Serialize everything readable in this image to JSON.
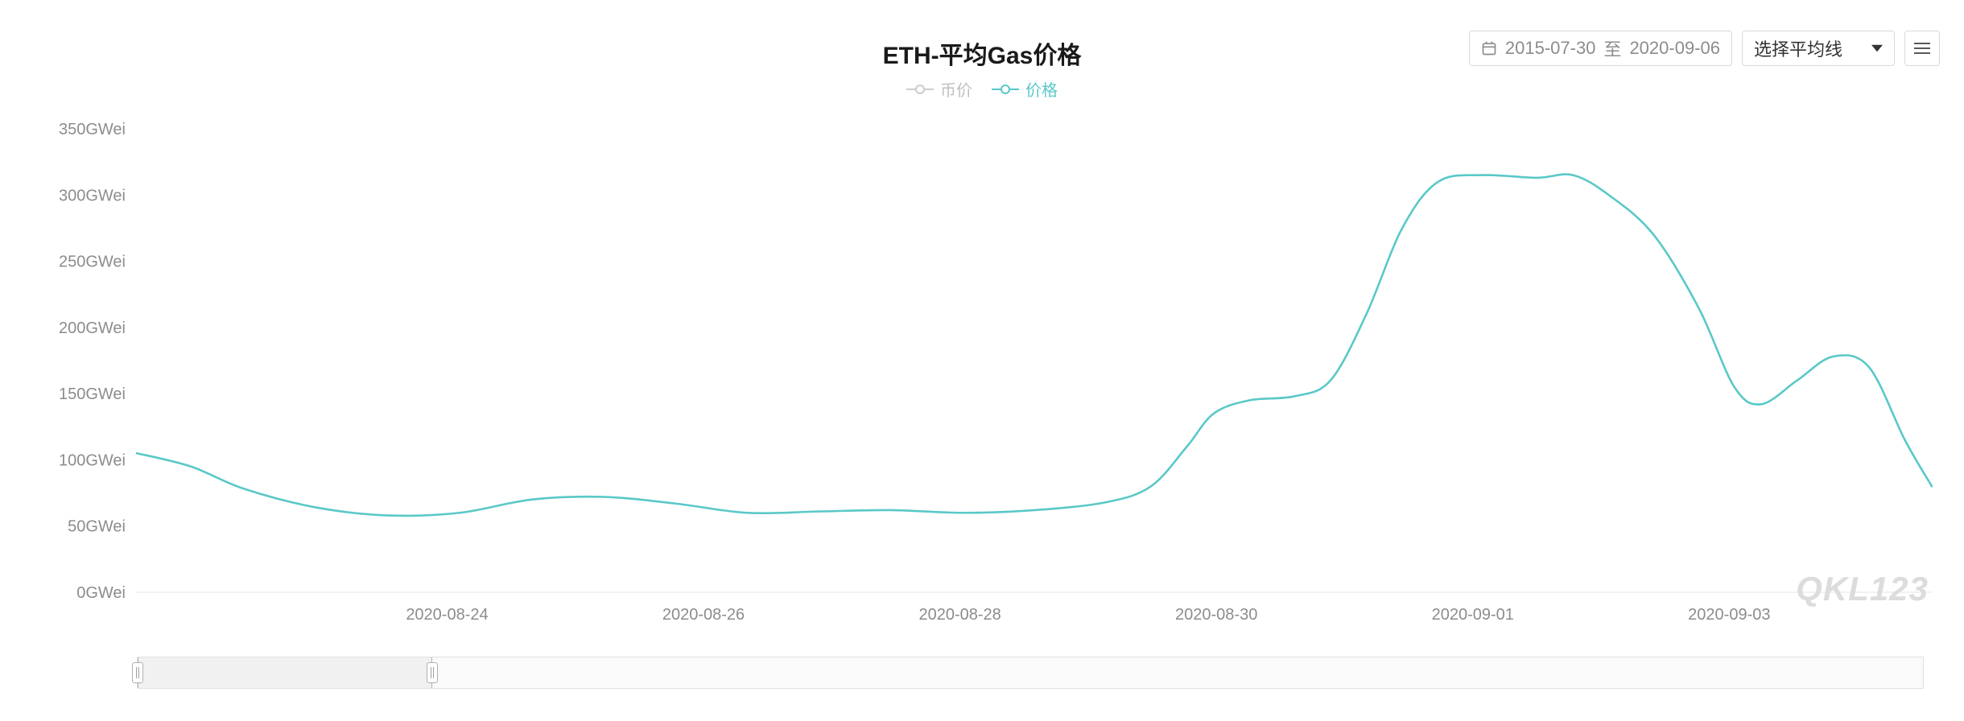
{
  "chart": {
    "type": "line",
    "title": "ETH-平均Gas价格",
    "title_fontsize": 30,
    "background_color": "#ffffff",
    "grid_color": "#e6e6e6",
    "axis_label_color": "#8c8c8c",
    "axis_label_fontsize": 20,
    "y": {
      "min": 0,
      "max": 350,
      "tick_step": 50,
      "unit": "GWei",
      "ticks": [
        "0GWei",
        "50GWei",
        "100GWei",
        "150GWei",
        "200GWei",
        "250GWei",
        "300GWei",
        "350GWei"
      ]
    },
    "x": {
      "tick_labels": [
        "2020-08-24",
        "2020-08-26",
        "2020-08-28",
        "2020-08-30",
        "2020-09-01",
        "2020-09-03"
      ],
      "range_start": "2020-08-22",
      "range_end": "2020-09-05"
    },
    "legend": [
      {
        "key": "coin_price",
        "label": "币价",
        "color": "#cccccc",
        "line_width": 2,
        "marker": "hollow-circle",
        "active": false
      },
      {
        "key": "gas_price",
        "label": "价格",
        "color": "#5ac8c8",
        "line_width": 2,
        "marker": "hollow-circle",
        "active": true
      }
    ],
    "series": {
      "gas_price": {
        "color": "#5ac8c8",
        "line_width": 2.6,
        "points": [
          {
            "t": 0.0,
            "v": 105
          },
          {
            "t": 0.03,
            "v": 95
          },
          {
            "t": 0.06,
            "v": 78
          },
          {
            "t": 0.1,
            "v": 64
          },
          {
            "t": 0.14,
            "v": 58
          },
          {
            "t": 0.18,
            "v": 60
          },
          {
            "t": 0.22,
            "v": 70
          },
          {
            "t": 0.26,
            "v": 72
          },
          {
            "t": 0.3,
            "v": 67
          },
          {
            "t": 0.34,
            "v": 60
          },
          {
            "t": 0.38,
            "v": 61
          },
          {
            "t": 0.42,
            "v": 62
          },
          {
            "t": 0.46,
            "v": 60
          },
          {
            "t": 0.5,
            "v": 62
          },
          {
            "t": 0.54,
            "v": 68
          },
          {
            "t": 0.565,
            "v": 80
          },
          {
            "t": 0.585,
            "v": 110
          },
          {
            "t": 0.6,
            "v": 135
          },
          {
            "t": 0.62,
            "v": 145
          },
          {
            "t": 0.645,
            "v": 148
          },
          {
            "t": 0.665,
            "v": 160
          },
          {
            "t": 0.685,
            "v": 210
          },
          {
            "t": 0.705,
            "v": 275
          },
          {
            "t": 0.725,
            "v": 310
          },
          {
            "t": 0.75,
            "v": 315
          },
          {
            "t": 0.78,
            "v": 313
          },
          {
            "t": 0.8,
            "v": 315
          },
          {
            "t": 0.82,
            "v": 300
          },
          {
            "t": 0.845,
            "v": 270
          },
          {
            "t": 0.87,
            "v": 215
          },
          {
            "t": 0.89,
            "v": 155
          },
          {
            "t": 0.905,
            "v": 142
          },
          {
            "t": 0.925,
            "v": 160
          },
          {
            "t": 0.945,
            "v": 178
          },
          {
            "t": 0.965,
            "v": 170
          },
          {
            "t": 0.985,
            "v": 115
          },
          {
            "t": 1.0,
            "v": 80
          }
        ]
      }
    },
    "watermark": "QKL123"
  },
  "toolbar": {
    "date_from": "2015-07-30",
    "date_sep": "至",
    "date_to": "2020-09-06",
    "ma_label": "选择平均线"
  },
  "navigator": {
    "window_start_pct": 0.0,
    "window_end_pct": 0.165
  }
}
